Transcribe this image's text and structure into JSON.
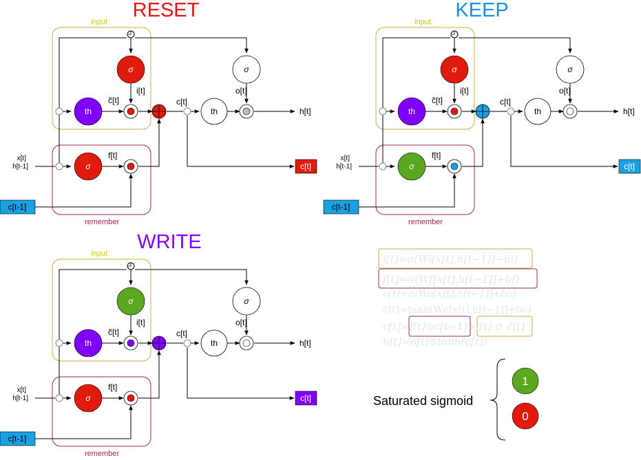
{
  "panels": {
    "reset": {
      "title": "RESET",
      "title_color": "#ee1111",
      "input_label": "input",
      "remember_label": "remember",
      "input_gate_color": "#e01b0c",
      "forget_gate_color": "#e01b0c",
      "sum_color": "#e01b0c",
      "mult_i_color": "#e01b0c",
      "mult_f_color": "#e01b0c",
      "mult_o_color": "#bbbbbb",
      "output_box_color": "#e01b0c",
      "input_box_color": "#1ba1e2"
    },
    "keep": {
      "title": "KEEP",
      "title_color": "#1a8fe8",
      "input_label": "input",
      "remember_label": "remember",
      "input_gate_color": "#e01b0c",
      "forget_gate_color": "#5ba71f",
      "sum_color": "#1ba1e2",
      "mult_i_color": "#e01b0c",
      "mult_f_color": "#1ba1e2",
      "mult_o_color": "#ffffff",
      "output_box_color": "#1ba1e2",
      "input_box_color": "#1ba1e2"
    },
    "write": {
      "title": "WRITE",
      "title_color": "#7f00ff",
      "input_label": "input",
      "remember_label": "remember",
      "input_gate_color": "#5ba71f",
      "forget_gate_color": "#e01b0c",
      "sum_color": "#7f00ff",
      "mult_i_color": "#7f00ff",
      "mult_f_color": "#e01b0c",
      "mult_o_color": "#ffffff",
      "output_box_color": "#7f00ff",
      "input_box_color": "#1ba1e2"
    }
  },
  "cell_labels": {
    "sigma": "σ",
    "tanh": "th",
    "c_tilde": "c̃[t]",
    "i_t": "i[t]",
    "f_t": "f[t]",
    "o_t": "o[t]",
    "c_t": "c[t]",
    "h_t": "h[t]",
    "x_t": "x[t]",
    "h_prev": "h[t-1]",
    "c_prev": "c[t-1]",
    "c_out": "c[t]"
  },
  "colors": {
    "input_border": "#c7b242",
    "remember_border": "#a3245a",
    "input_label": "#cccc00",
    "remember_label": "#a3245a",
    "tanh_fill": "#7f00ff"
  },
  "equations": [
    "i[t]=σ(Wi[x[t],h[t−1]]+bi)",
    "f[t]=σ(Wf[x[t],h[t−1]]+bf)",
    "o[t]=σ(Wo[x[t],h[t−1]]+bo)",
    "c̄[t]=tanh(Wc[x[t],h[t−1]]+bc)",
    "c[t]=f[t]⊙c[t−1]+i[t] ⊙ c̄[t]",
    "h[t]=o[t]⊙tanh(c[t])"
  ],
  "legend": {
    "label": "Saturated sigmoid",
    "one": "1",
    "one_color": "#5ba71f",
    "zero": "0",
    "zero_color": "#e01b0c"
  }
}
